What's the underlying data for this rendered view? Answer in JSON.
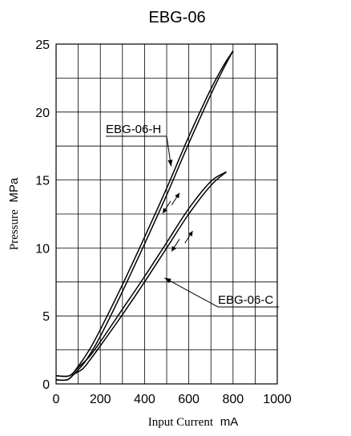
{
  "chart_data": {
    "type": "line",
    "title": "EBG-06",
    "ylabel": "Pressure",
    "ylabel_unit": "MPa",
    "xlabel": "Input Current",
    "xlabel_unit": "mA",
    "xlim": [
      0,
      1000
    ],
    "ylim": [
      0,
      25
    ],
    "x_ticks": [
      "0",
      "200",
      "400",
      "600",
      "800",
      "1000"
    ],
    "y_ticks": [
      "0",
      "5",
      "10",
      "15",
      "20",
      "25"
    ],
    "grid": true,
    "series": [
      {
        "name": "EBG-06-H",
        "direction": "increasing",
        "x": [
          0,
          50,
          80,
          120,
          150,
          200,
          300,
          400,
          500,
          600,
          700,
          760,
          800
        ],
        "y": [
          0.3,
          0.3,
          0.7,
          1.4,
          2.1,
          3.5,
          6.8,
          10.3,
          13.9,
          17.7,
          21.3,
          23.3,
          24.5
        ]
      },
      {
        "name": "EBG-06-H",
        "direction": "decreasing",
        "x": [
          800,
          760,
          700,
          600,
          500,
          400,
          300,
          200,
          150,
          100,
          60,
          0
        ],
        "y": [
          24.5,
          23.5,
          21.7,
          18.2,
          14.4,
          10.8,
          7.3,
          4.0,
          2.5,
          1.3,
          0.6,
          0.6
        ]
      },
      {
        "name": "EBG-06-C",
        "direction": "increasing",
        "x": [
          0,
          50,
          80,
          120,
          150,
          200,
          300,
          400,
          500,
          600,
          700,
          770
        ],
        "y": [
          0.3,
          0.3,
          0.7,
          1.1,
          1.7,
          2.8,
          5.1,
          7.5,
          10.0,
          12.5,
          14.6,
          15.6
        ]
      },
      {
        "name": "EBG-06-C",
        "direction": "decreasing",
        "x": [
          770,
          700,
          600,
          500,
          400,
          300,
          200,
          150,
          100,
          60,
          0
        ],
        "y": [
          15.6,
          14.9,
          12.9,
          10.4,
          7.9,
          5.5,
          3.1,
          2.0,
          1.2,
          0.6,
          0.6
        ]
      }
    ],
    "annotations": [
      {
        "text": "EBG-06-H",
        "points_to": [
          520,
          16.0
        ]
      },
      {
        "text": "EBG-06-C",
        "points_to": [
          490,
          7.8
        ]
      }
    ],
    "direction_arrows": [
      {
        "series": "EBG-06-H",
        "at": [
          500,
          13.0
        ],
        "direction": "down"
      },
      {
        "series": "EBG-06-H",
        "at": [
          540,
          13.6
        ],
        "direction": "up"
      },
      {
        "series": "EBG-06-C",
        "at": [
          540,
          10.2
        ],
        "direction": "down"
      },
      {
        "series": "EBG-06-C",
        "at": [
          600,
          10.8
        ],
        "direction": "up"
      }
    ]
  }
}
